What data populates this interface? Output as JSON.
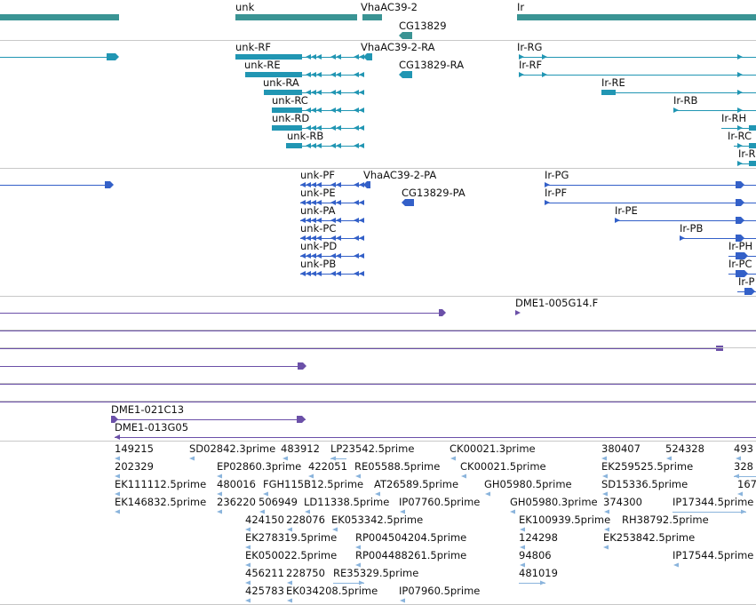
{
  "colors": {
    "gene": "#3a9494",
    "transcript": "#2196b3",
    "protein": "#3360c8",
    "cdna": "#6b50a8",
    "est": "#8ab4dc",
    "divider": "#c8c8c8"
  },
  "genes": {
    "labels": [
      "unk",
      "VhaAC39-2",
      "CG13829",
      "Ir"
    ]
  },
  "transcripts": {
    "labels": [
      "unk-RF",
      "VhaAC39-2-RA",
      "Ir-RG",
      "unk-RE",
      "CG13829-RA",
      "Ir-RF",
      "unk-RA",
      "Ir-RE",
      "unk-RC",
      "Ir-RB",
      "unk-RD",
      "Ir-RH",
      "unk-RB",
      "Ir-RC",
      "Ir-R"
    ]
  },
  "proteins": {
    "labels": [
      "unk-PF",
      "VhaAC39-2-PA",
      "Ir-PG",
      "unk-PE",
      "CG13829-PA",
      "Ir-PF",
      "unk-PA",
      "Ir-PE",
      "unk-PC",
      "Ir-PB",
      "unk-PD",
      "Ir-PH",
      "unk-PB",
      "Ir-PC",
      "Ir-P"
    ]
  },
  "cdna": {
    "labels": [
      "DME1-005G14.F",
      "DME1-021C13",
      "DME1-013G05"
    ]
  },
  "ests": {
    "labels": [
      "149215",
      "SD02842.3prime",
      "483912",
      "LP23542.5prime",
      "CK00021.3prime",
      "380407",
      "524328",
      "493",
      "202329",
      "EP02860.3prime",
      "422051",
      "RE05588.5prime",
      "CK00021.5prime",
      "EK259525.5prime",
      "328",
      "EK111112.5prime",
      "480016",
      "FGH115B12.5prime",
      "AT26589.5prime",
      "GH05980.5prime",
      "SD15336.5prime",
      "167",
      "EK146832.5prime",
      "236220",
      "506949",
      "LD11338.5prime",
      "IP07760.5prime",
      "GH05980.3prime",
      "374300",
      "IP17344.5prime",
      "424150",
      "228076",
      "EK053342.5prime",
      "EK100939.5prime",
      "RH38792.5prime",
      "EK278319.5prime",
      "RP004504204.5prime",
      "124298",
      "EK253842.5prime",
      "EK050022.5prime",
      "RP004488261.5prime",
      "94806",
      "IP17544.5prime",
      "456211",
      "228750",
      "RE35329.5prime",
      "481019",
      "425783",
      "EK034208.5prime",
      "IP07960.5prime"
    ]
  }
}
